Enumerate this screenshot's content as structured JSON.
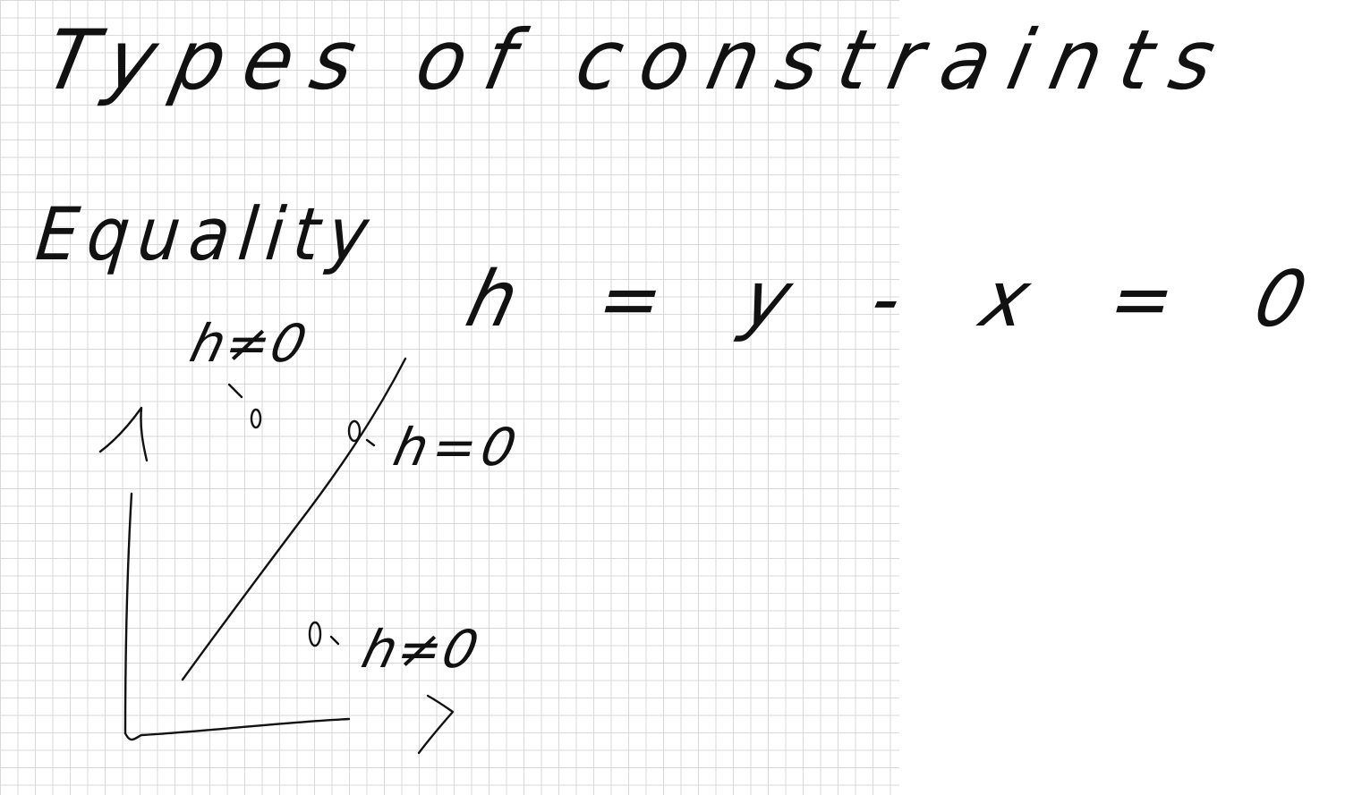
{
  "title": "Types of constraints",
  "heading": "Equality",
  "equation": "h = y - x = 0",
  "points": [
    {
      "id": "top",
      "label": "h≠0"
    },
    {
      "id": "on-line",
      "label": "h=0"
    },
    {
      "id": "below",
      "label": "h≠0"
    }
  ]
}
